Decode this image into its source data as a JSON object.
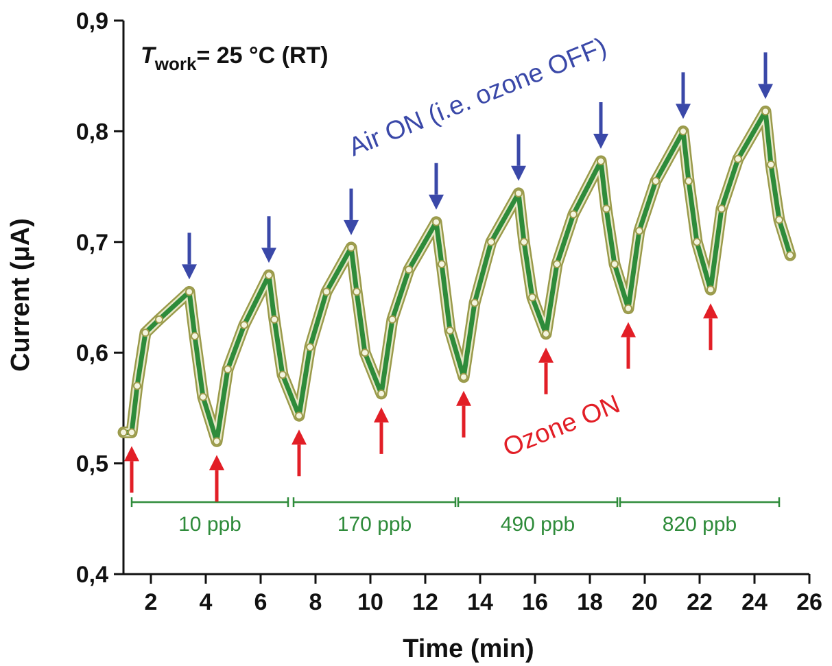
{
  "chart_data": {
    "type": "line",
    "xlabel": "Time (min)",
    "ylabel": "Current (μA)",
    "xlim": [
      1,
      26
    ],
    "ylim": [
      0.4,
      0.9
    ],
    "x_ticks": [
      2,
      4,
      6,
      8,
      10,
      12,
      14,
      16,
      18,
      20,
      22,
      24,
      26
    ],
    "y_ticks": [
      {
        "value": 0.4,
        "label": "0,4"
      },
      {
        "value": 0.5,
        "label": "0,5"
      },
      {
        "value": 0.6,
        "label": "0,6"
      },
      {
        "value": 0.7,
        "label": "0,7"
      },
      {
        "value": 0.8,
        "label": "0,8"
      },
      {
        "value": 0.9,
        "label": "0,9"
      }
    ],
    "grid": false,
    "legend": "none",
    "condition": {
      "t_symbol": "T",
      "t_sub": "work",
      "rest": "= 25 °C (RT)"
    },
    "series": [
      {
        "color": "#2e8b3a",
        "marker_color": "#9a9a4a",
        "x": [
          1.0,
          1.3,
          1.5,
          1.8,
          2.3,
          3.4,
          3.6,
          3.9,
          4.4,
          4.8,
          5.4,
          6.3,
          6.5,
          6.8,
          7.4,
          7.8,
          8.4,
          9.3,
          9.5,
          9.8,
          10.4,
          10.8,
          11.4,
          12.4,
          12.6,
          12.9,
          13.4,
          13.8,
          14.4,
          15.4,
          15.6,
          15.9,
          16.4,
          16.8,
          17.4,
          18.4,
          18.6,
          18.9,
          19.4,
          19.8,
          20.4,
          21.4,
          21.6,
          21.9,
          22.4,
          22.8,
          23.4,
          24.4,
          24.6,
          24.9,
          25.3
        ],
        "y": [
          0.528,
          0.528,
          0.57,
          0.618,
          0.63,
          0.655,
          0.615,
          0.56,
          0.52,
          0.585,
          0.625,
          0.67,
          0.63,
          0.58,
          0.543,
          0.605,
          0.655,
          0.695,
          0.655,
          0.6,
          0.563,
          0.63,
          0.675,
          0.718,
          0.68,
          0.62,
          0.578,
          0.645,
          0.7,
          0.744,
          0.7,
          0.65,
          0.617,
          0.68,
          0.725,
          0.773,
          0.73,
          0.68,
          0.64,
          0.71,
          0.755,
          0.8,
          0.755,
          0.7,
          0.657,
          0.73,
          0.775,
          0.818,
          0.77,
          0.72,
          0.688
        ]
      }
    ],
    "annotations": {
      "air_label": "Air ON (i.e. ozone OFF)",
      "ozone_label": "Ozone ON",
      "air_on_x": [
        3.4,
        6.3,
        9.3,
        12.4,
        15.4,
        18.4,
        21.4,
        24.4
      ],
      "ozone_on_x": [
        1.3,
        4.4,
        7.4,
        10.4,
        13.4,
        16.4,
        19.4,
        22.4
      ],
      "air_color": "#3a48a8",
      "ozone_color": "#e21e26"
    },
    "concentration_ranges": [
      {
        "label": "10 ppb",
        "x_start": 1.3,
        "x_end": 7.0
      },
      {
        "label": "170 ppb",
        "x_start": 7.2,
        "x_end": 13.1
      },
      {
        "label": "490 ppb",
        "x_start": 13.2,
        "x_end": 19.0
      },
      {
        "label": "820 ppb",
        "x_start": 19.1,
        "x_end": 24.9
      }
    ],
    "range_y": 0.465
  }
}
